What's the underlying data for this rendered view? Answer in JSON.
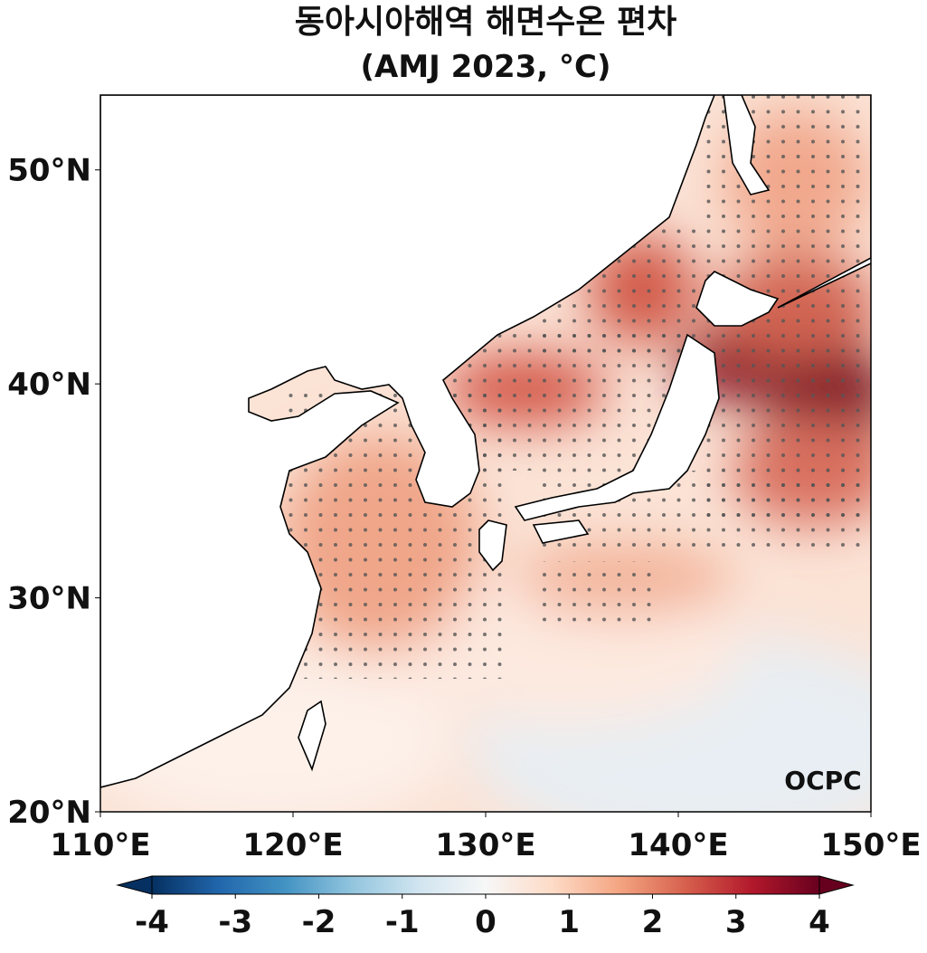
{
  "header": {
    "title": "동아시아해역 해면수온 편차",
    "subtitle": "(AMJ 2023, °C)"
  },
  "map": {
    "xlim": [
      110,
      150
    ],
    "ylim": [
      20,
      53.5
    ],
    "xticks": [
      {
        "value": 110,
        "label": "110°E"
      },
      {
        "value": 120,
        "label": "120°E"
      },
      {
        "value": 130,
        "label": "130°E"
      },
      {
        "value": 140,
        "label": "140°E"
      },
      {
        "value": 150,
        "label": "150°E"
      }
    ],
    "yticks": [
      {
        "value": 20,
        "label": "20°N"
      },
      {
        "value": 30,
        "label": "30°N"
      },
      {
        "value": 40,
        "label": "40°N"
      },
      {
        "value": 50,
        "label": "50°N"
      }
    ]
  },
  "colorbar": {
    "lim": [
      -4,
      4
    ],
    "ticks": [
      -4,
      -3,
      -2,
      -1,
      0,
      1,
      2,
      3,
      4
    ],
    "colors": [
      "#053061",
      "#2166ac",
      "#4393c3",
      "#92c5de",
      "#d1e5f0",
      "#f7f7f7",
      "#fddbc7",
      "#f4a582",
      "#d6604d",
      "#b2182b",
      "#67001f"
    ]
  },
  "logo": "OCPC"
}
